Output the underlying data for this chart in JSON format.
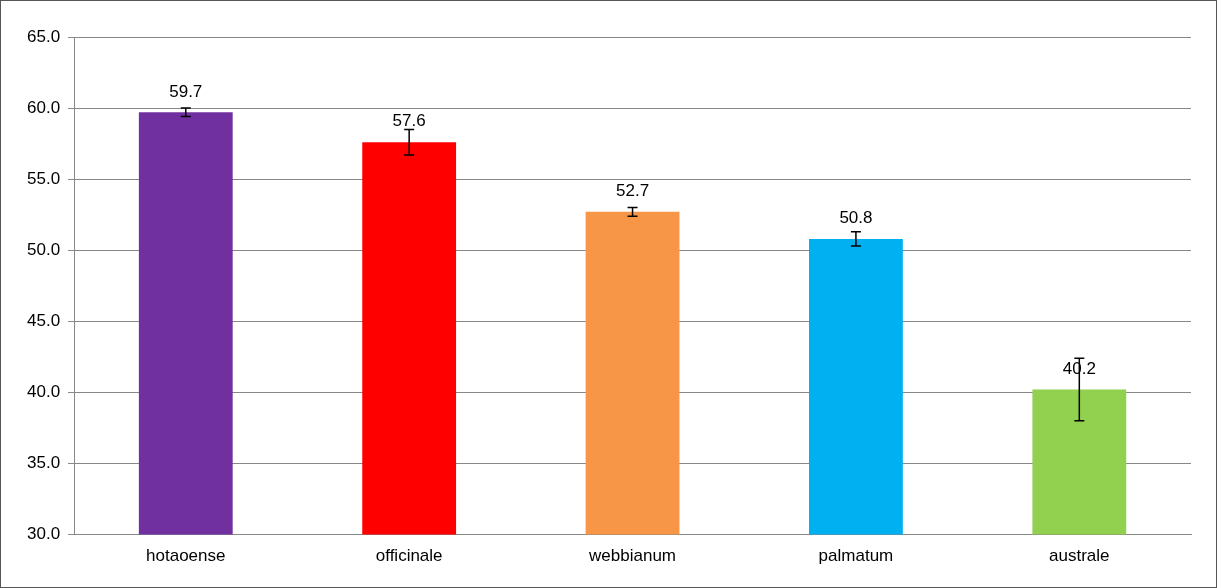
{
  "chart_data": {
    "type": "bar",
    "categories": [
      "hotaoense",
      "officinale",
      "webbianum",
      "palmatum",
      "australe"
    ],
    "values": [
      59.7,
      57.6,
      52.7,
      50.8,
      40.2
    ],
    "colors": [
      "#7030a0",
      "#ff0000",
      "#f79646",
      "#00b0f0",
      "#92d050"
    ],
    "errors": [
      0.3,
      0.9,
      0.3,
      0.5,
      2.2
    ],
    "ylim": [
      30,
      65
    ],
    "yticks": [
      {
        "value": 30,
        "label": "30.0"
      },
      {
        "value": 35,
        "label": "35.0"
      },
      {
        "value": 40,
        "label": "40.0"
      },
      {
        "value": 45,
        "label": "45.0"
      },
      {
        "value": 50,
        "label": "50.0"
      },
      {
        "value": 55,
        "label": "55.0"
      },
      {
        "value": 60,
        "label": "60.0"
      },
      {
        "value": 65,
        "label": "65.0"
      }
    ],
    "grid": "y",
    "data_labels": true
  }
}
